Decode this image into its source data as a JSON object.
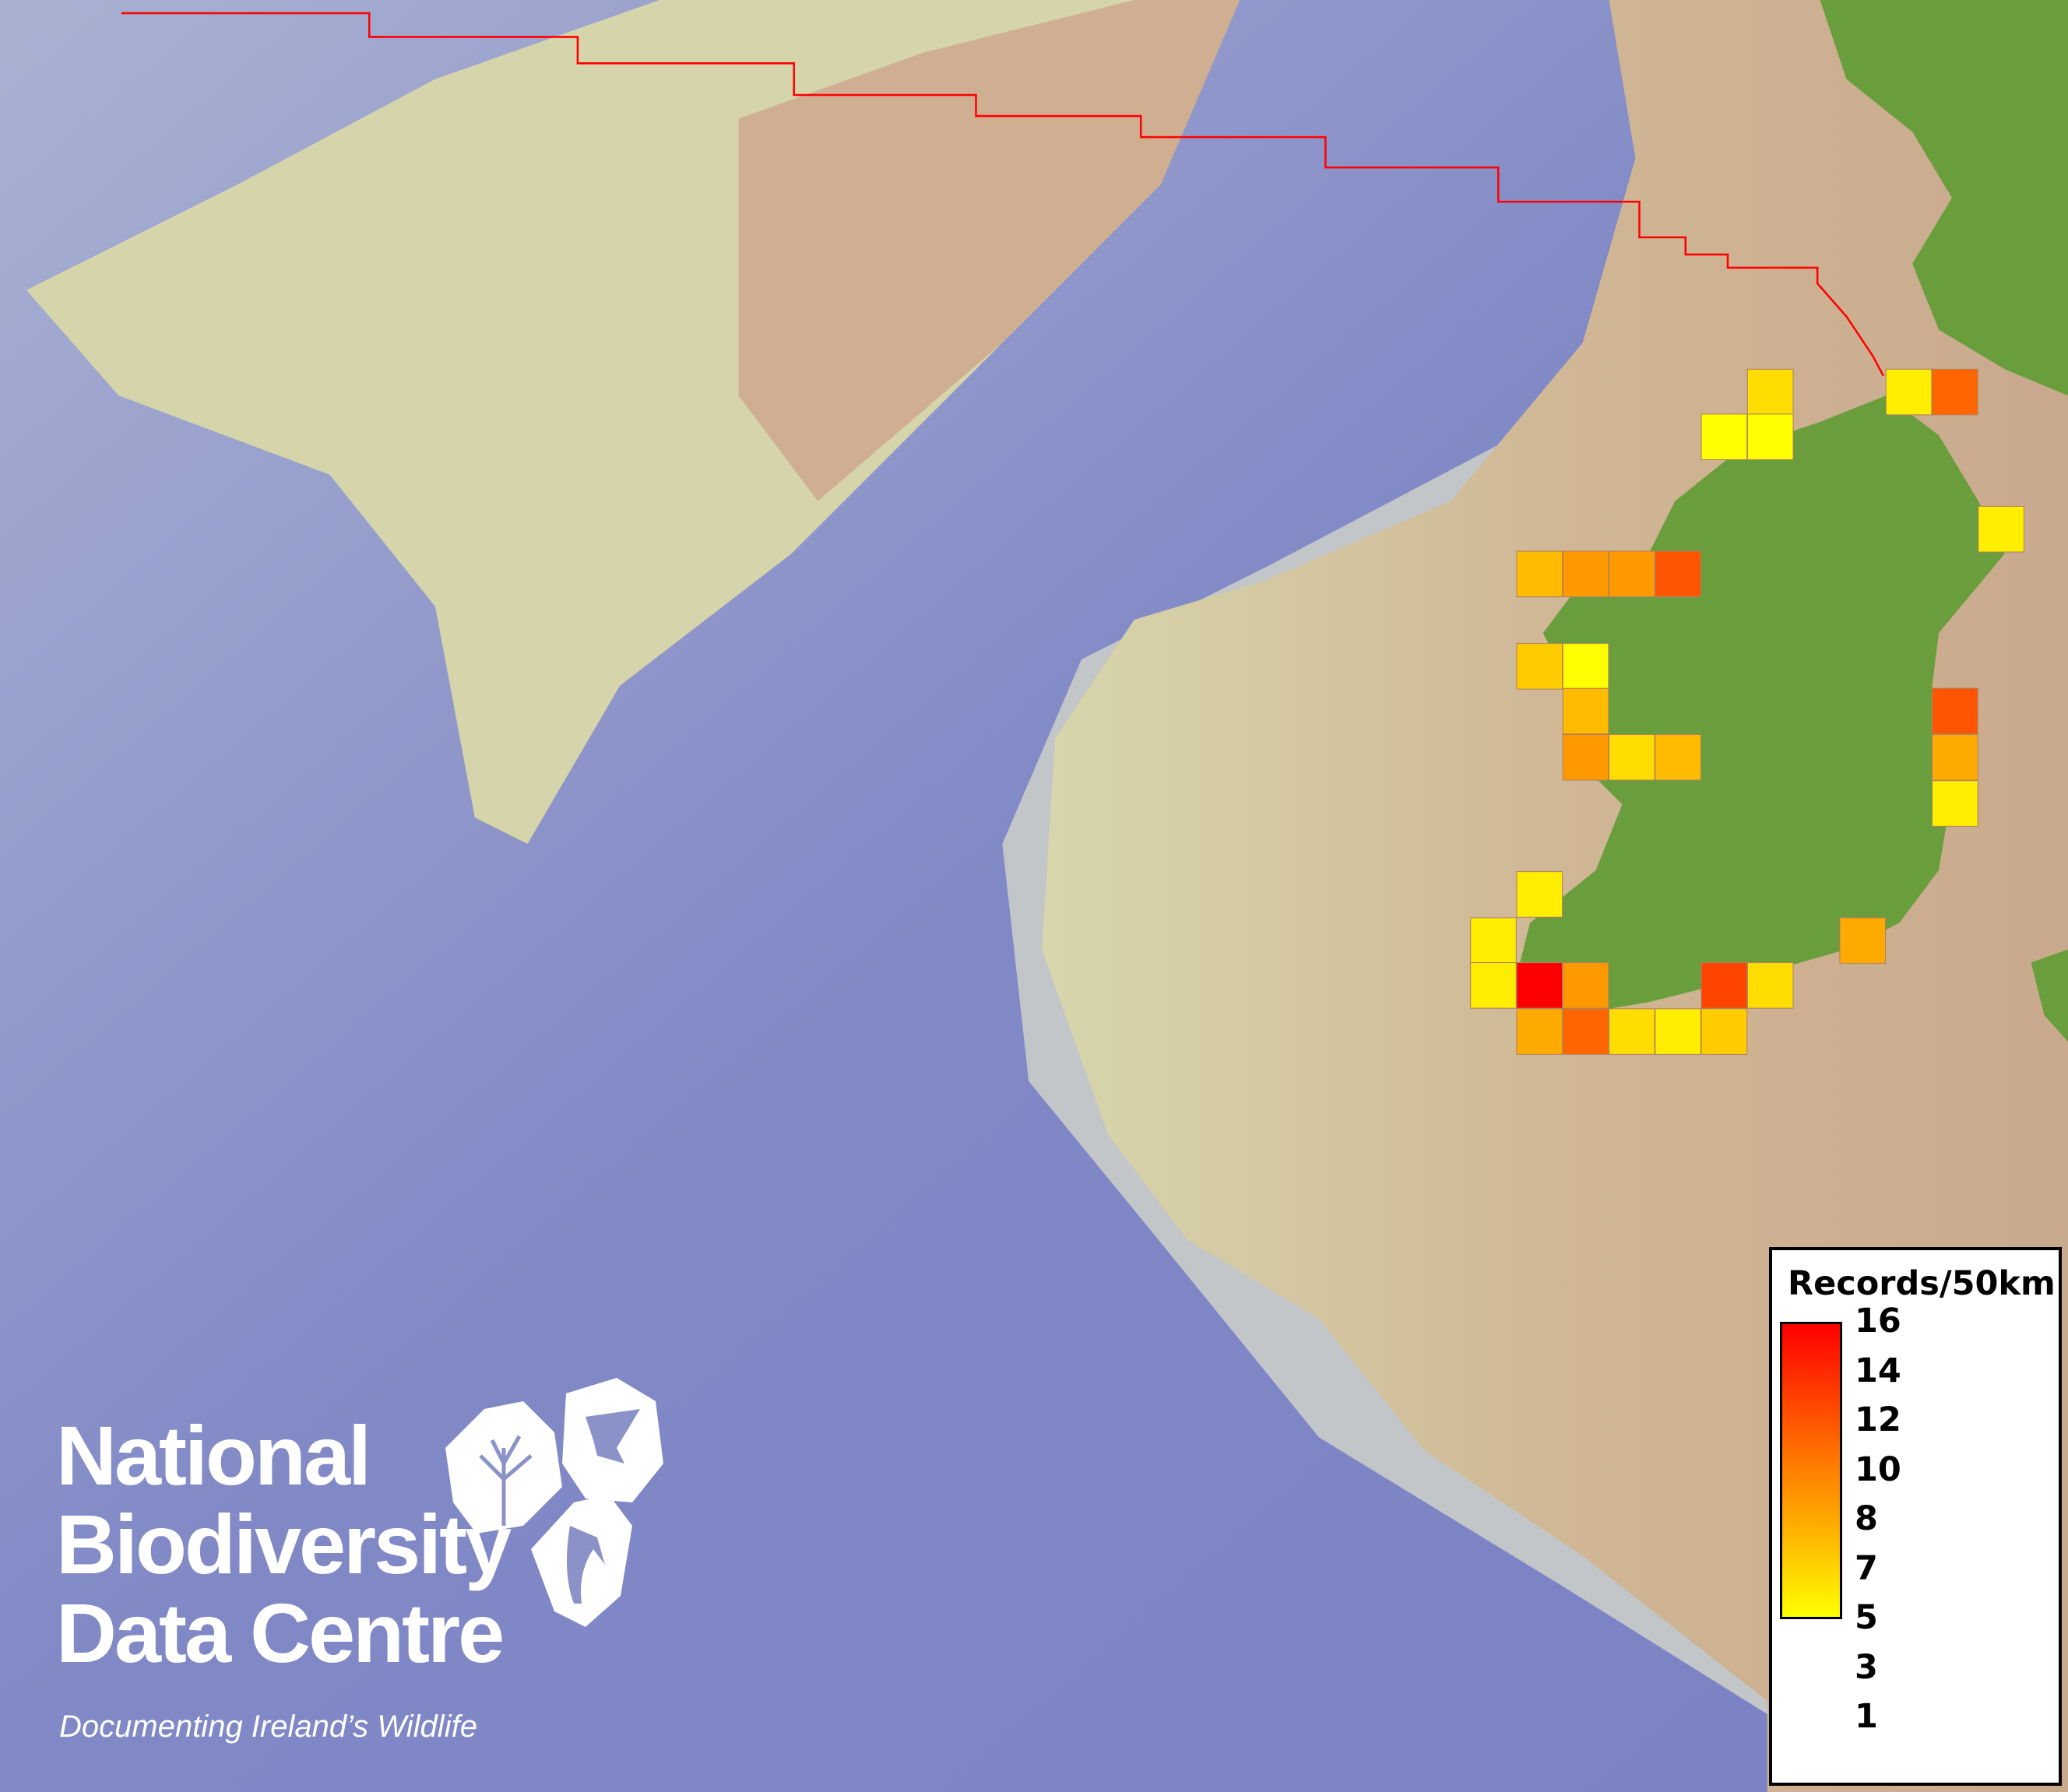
{
  "map": {
    "colors": {
      "sea_deep": "#7c84c6",
      "sea_shelf": "#c9d0c8",
      "shelf_sand": "#d9d3a5",
      "shelf_tan": "#cfa98d",
      "land": "#6a9e3c",
      "boundary": "#ff0000",
      "low": "#ffff00",
      "high": "#ff0000"
    },
    "record_values": [
      3,
      2,
      10,
      1,
      1,
      2,
      5,
      7,
      7,
      11,
      4,
      1,
      5,
      11,
      7,
      3,
      5,
      6,
      2,
      2,
      2,
      6,
      2,
      16,
      7,
      12,
      3,
      6,
      10,
      3,
      2,
      4
    ]
  },
  "legend": {
    "title": "Records/50km",
    "ticks": [
      "16",
      "14",
      "12",
      "10",
      "8",
      "7",
      "5",
      "3",
      "1"
    ],
    "range": [
      1,
      16
    ]
  },
  "logo": {
    "line1": "National",
    "line2": "Biodiversity",
    "line3": "Data Centre",
    "tagline": "Documenting Ireland’s Wildlife",
    "icons": [
      "plant-icon",
      "butterfly-icon",
      "seahorse-icon"
    ]
  }
}
